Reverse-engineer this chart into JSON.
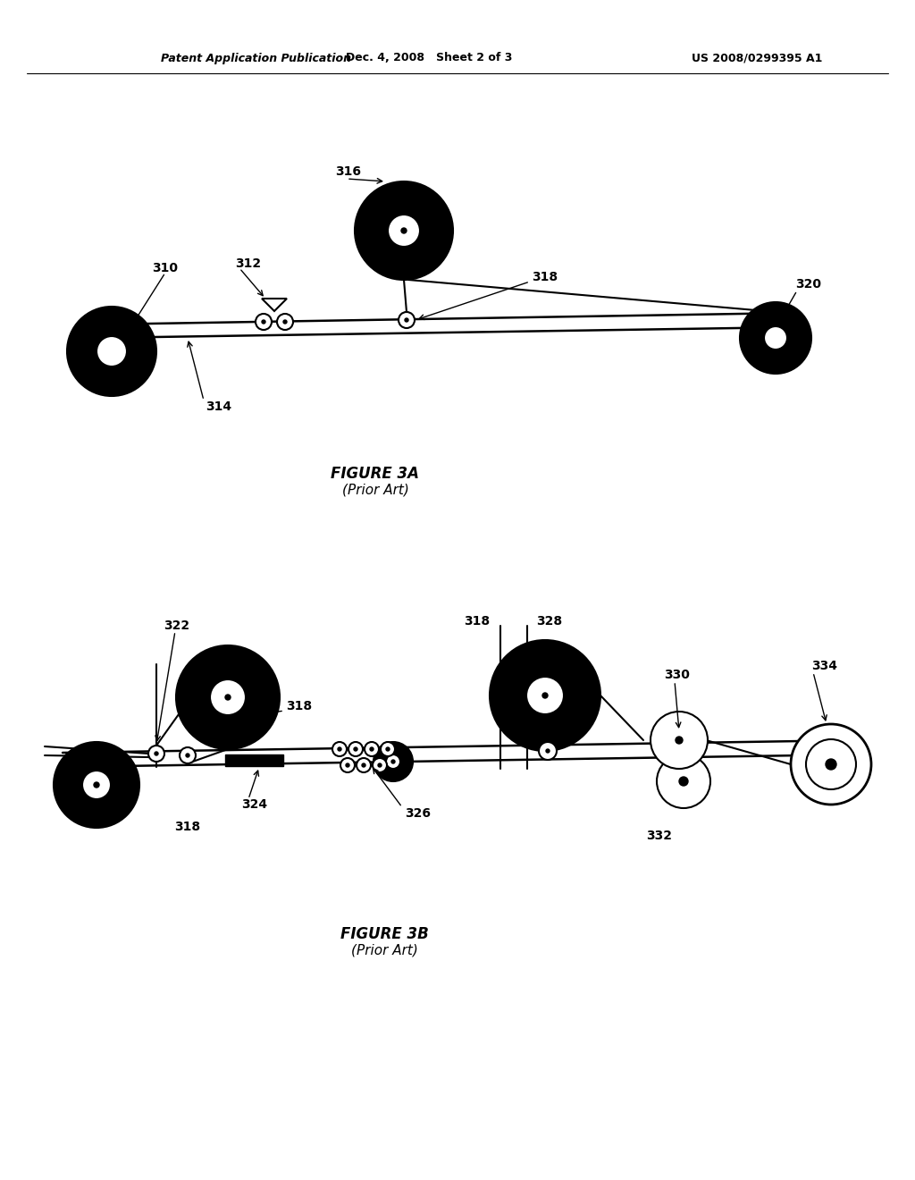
{
  "header_left": "Patent Application Publication",
  "header_mid": "Dec. 4, 2008   Sheet 2 of 3",
  "header_right": "US 2008/0299395 A1",
  "fig3a_label": "FIGURE 3A",
  "fig3a_sublabel": "(Prior Art)",
  "fig3b_label": "FIGURE 3B",
  "fig3b_sublabel": "(Prior Art)",
  "bg_color": "#ffffff"
}
